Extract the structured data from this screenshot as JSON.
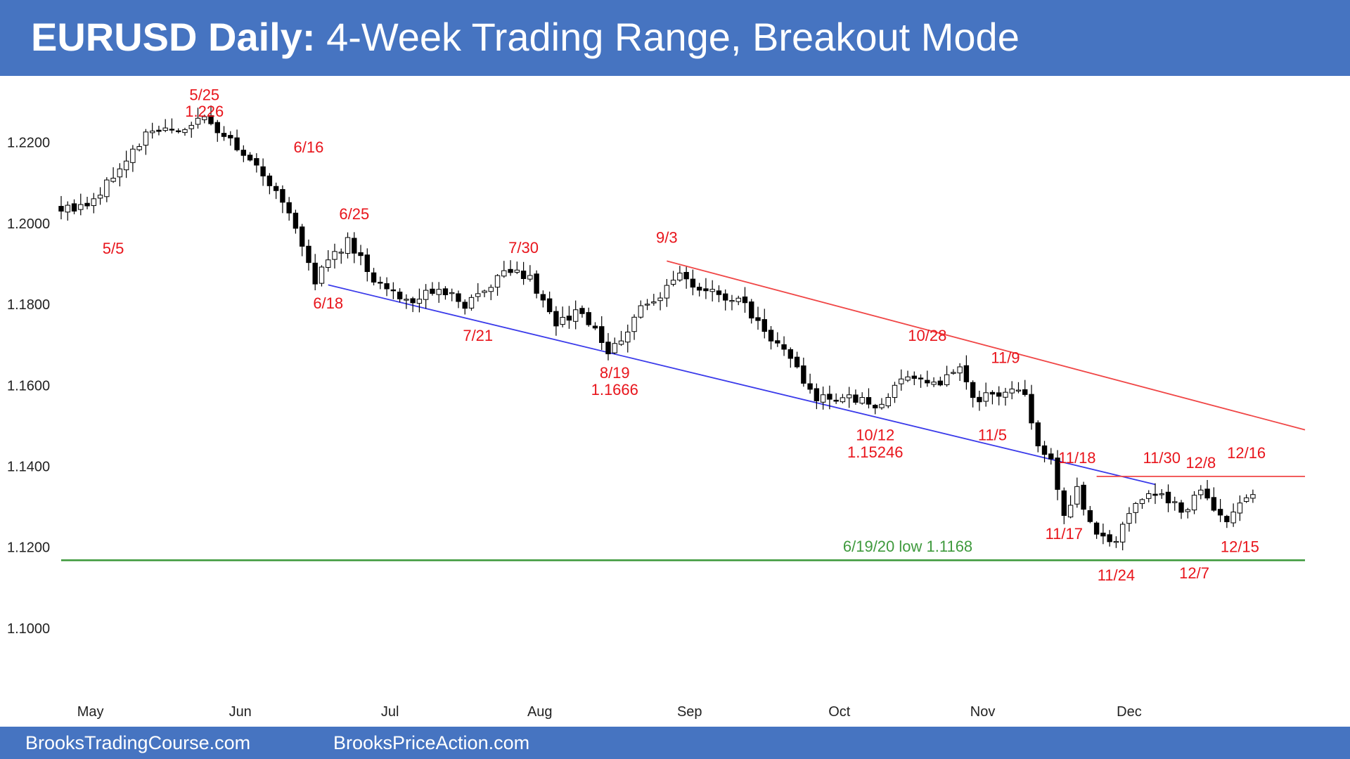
{
  "header": {
    "title_bold": "EURUSD Daily:",
    "title_rest": " 4-Week Trading Range, Breakout Mode"
  },
  "footer": {
    "left_link": "BrooksTradingCourse.com",
    "right_link": "BrooksPriceAction.com"
  },
  "colors": {
    "banner": "#4674c1",
    "label_red": "#e8141b",
    "channel_red": "#f04646",
    "trend_blue": "#3b3bea",
    "support_green": "#3f9a3d"
  },
  "chart_data": {
    "type": "candlestick",
    "symbol": "EURUSD",
    "timeframe": "Daily",
    "ylim": [
      1.092,
      1.234
    ],
    "y_ticks": [
      "1.1000",
      "1.1200",
      "1.1400",
      "1.1600",
      "1.1800",
      "1.2000",
      "1.2200"
    ],
    "months": [
      "May",
      "Jun",
      "Jul",
      "Aug",
      "Sep",
      "Oct",
      "Nov",
      "Dec"
    ],
    "anchors": [
      {
        "i": 0,
        "price": 1.2035
      },
      {
        "i": 5,
        "price": 1.2055
      },
      {
        "i": 14,
        "price": 1.2235
      },
      {
        "i": 19,
        "price": 1.2225
      },
      {
        "i": 22,
        "price": 1.2265
      },
      {
        "i": 30,
        "price": 1.2145
      },
      {
        "i": 36,
        "price": 1.1998
      },
      {
        "i": 39,
        "price": 1.1862
      },
      {
        "i": 44,
        "price": 1.1955
      },
      {
        "i": 48,
        "price": 1.1865
      },
      {
        "i": 53,
        "price": 1.181
      },
      {
        "i": 58,
        "price": 1.184
      },
      {
        "i": 62,
        "price": 1.1795
      },
      {
        "i": 68,
        "price": 1.188
      },
      {
        "i": 72,
        "price": 1.1865
      },
      {
        "i": 76,
        "price": 1.1745
      },
      {
        "i": 80,
        "price": 1.179
      },
      {
        "i": 84,
        "price": 1.168
      },
      {
        "i": 89,
        "price": 1.1785
      },
      {
        "i": 95,
        "price": 1.1865
      },
      {
        "i": 99,
        "price": 1.184
      },
      {
        "i": 104,
        "price": 1.181
      },
      {
        "i": 110,
        "price": 1.17
      },
      {
        "i": 116,
        "price": 1.157
      },
      {
        "i": 122,
        "price": 1.1565
      },
      {
        "i": 125,
        "price": 1.1545
      },
      {
        "i": 130,
        "price": 1.162
      },
      {
        "i": 135,
        "price": 1.161
      },
      {
        "i": 138,
        "price": 1.165
      },
      {
        "i": 140,
        "price": 1.157
      },
      {
        "i": 145,
        "price": 1.158
      },
      {
        "i": 148,
        "price": 1.159
      },
      {
        "i": 150,
        "price": 1.145
      },
      {
        "i": 152,
        "price": 1.141
      },
      {
        "i": 154,
        "price": 1.129
      },
      {
        "i": 156,
        "price": 1.134
      },
      {
        "i": 159,
        "price": 1.123
      },
      {
        "i": 162,
        "price": 1.1215
      },
      {
        "i": 165,
        "price": 1.1305
      },
      {
        "i": 168,
        "price": 1.133
      },
      {
        "i": 172,
        "price": 1.129
      },
      {
        "i": 175,
        "price": 1.133
      },
      {
        "i": 179,
        "price": 1.127
      },
      {
        "i": 181,
        "price": 1.13
      },
      {
        "i": 183,
        "price": 1.133
      }
    ],
    "swing_labels": [
      {
        "text": "5/25",
        "i": 22,
        "price": 1.2304
      },
      {
        "text": "1.226",
        "i": 22,
        "price": 1.2264
      },
      {
        "text": "5/5",
        "i": 8,
        "price": 1.1925
      },
      {
        "text": "6/16",
        "i": 38,
        "price": 1.2175
      },
      {
        "text": "6/25",
        "i": 45,
        "price": 1.201
      },
      {
        "text": "6/18",
        "i": 41,
        "price": 1.179
      },
      {
        "text": "7/30",
        "i": 71,
        "price": 1.1927
      },
      {
        "text": "7/21",
        "i": 64,
        "price": 1.171
      },
      {
        "text": "8/19",
        "i": 85,
        "price": 1.1618
      },
      {
        "text": "1.1666",
        "i": 85,
        "price": 1.1576
      },
      {
        "text": "9/3",
        "i": 93,
        "price": 1.1952
      },
      {
        "text": "10/28",
        "i": 133,
        "price": 1.171
      },
      {
        "text": "11/9",
        "i": 145,
        "price": 1.1655
      },
      {
        "text": "11/5",
        "i": 143,
        "price": 1.1464
      },
      {
        "text": "10/12",
        "i": 125,
        "price": 1.1464
      },
      {
        "text": "1.15246",
        "i": 125,
        "price": 1.1422
      },
      {
        "text": "11/18",
        "i": 156,
        "price": 1.1408
      },
      {
        "text": "11/30",
        "i": 169,
        "price": 1.1408
      },
      {
        "text": "12/8",
        "i": 175,
        "price": 1.1396
      },
      {
        "text": "12/16",
        "i": 182,
        "price": 1.142
      },
      {
        "text": "11/17",
        "i": 154,
        "price": 1.122
      },
      {
        "text": "12/15",
        "i": 181,
        "price": 1.1188
      },
      {
        "text": "11/24",
        "i": 162,
        "price": 1.1118
      },
      {
        "text": "12/7",
        "i": 174,
        "price": 1.1123
      }
    ],
    "reference_lines": [
      {
        "name": "upper-channel",
        "color": "red",
        "from": {
          "i": 93,
          "price": 1.1907
        },
        "to": {
          "i": 191,
          "price": 1.149
        }
      },
      {
        "name": "lower-trend",
        "color": "blue",
        "from": {
          "i": 41,
          "price": 1.1848
        },
        "to": {
          "i": 168,
          "price": 1.1355
        }
      },
      {
        "name": "range-high",
        "color": "red",
        "from": {
          "i": 159,
          "price": 1.1375
        },
        "to": {
          "i": 191,
          "price": 1.1375
        }
      },
      {
        "name": "support",
        "color": "green",
        "from": {
          "i": 0,
          "price": 1.1168
        },
        "to": {
          "i": 191,
          "price": 1.1168
        }
      }
    ],
    "support_label": {
      "text": "6/19/20 low 1.1168",
      "i": 130,
      "price": 1.1189
    }
  }
}
